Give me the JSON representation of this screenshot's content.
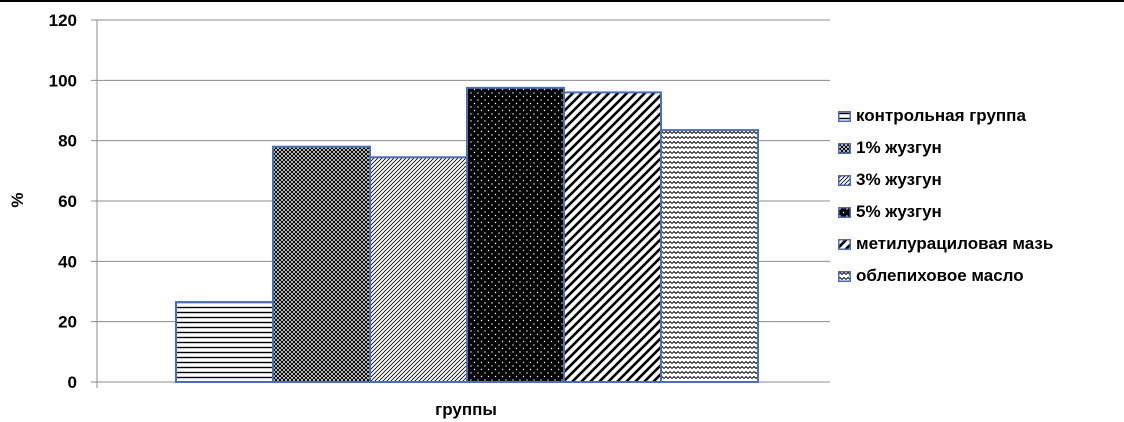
{
  "chart_data": {
    "type": "bar",
    "title": "",
    "xlabel": "группы",
    "ylabel": "%",
    "ylim": [
      0,
      120
    ],
    "yticks": [
      0,
      20,
      40,
      60,
      80,
      100,
      120
    ],
    "grid": true,
    "legend_position": "right",
    "categories": [
      ""
    ],
    "series": [
      {
        "name": "контрольная группа",
        "values": [
          26.5
        ],
        "pattern": "horizontal-lines"
      },
      {
        "name": "1% жузгун",
        "values": [
          78
        ],
        "pattern": "crosshatch"
      },
      {
        "name": "3% жузгун",
        "values": [
          74.5
        ],
        "pattern": "thin-diagonal"
      },
      {
        "name": "5% жузгун",
        "values": [
          97.5
        ],
        "pattern": "black-dots"
      },
      {
        "name": "метилурациловая мазь",
        "values": [
          96
        ],
        "pattern": "wide-diagonal"
      },
      {
        "name": "облепиховое масло",
        "values": [
          83.5
        ],
        "pattern": "zigzag"
      }
    ],
    "colors": {
      "bar_border": "#4a6fb3",
      "grid": "#8c8c8c",
      "axis": "#8c8c8c"
    }
  }
}
